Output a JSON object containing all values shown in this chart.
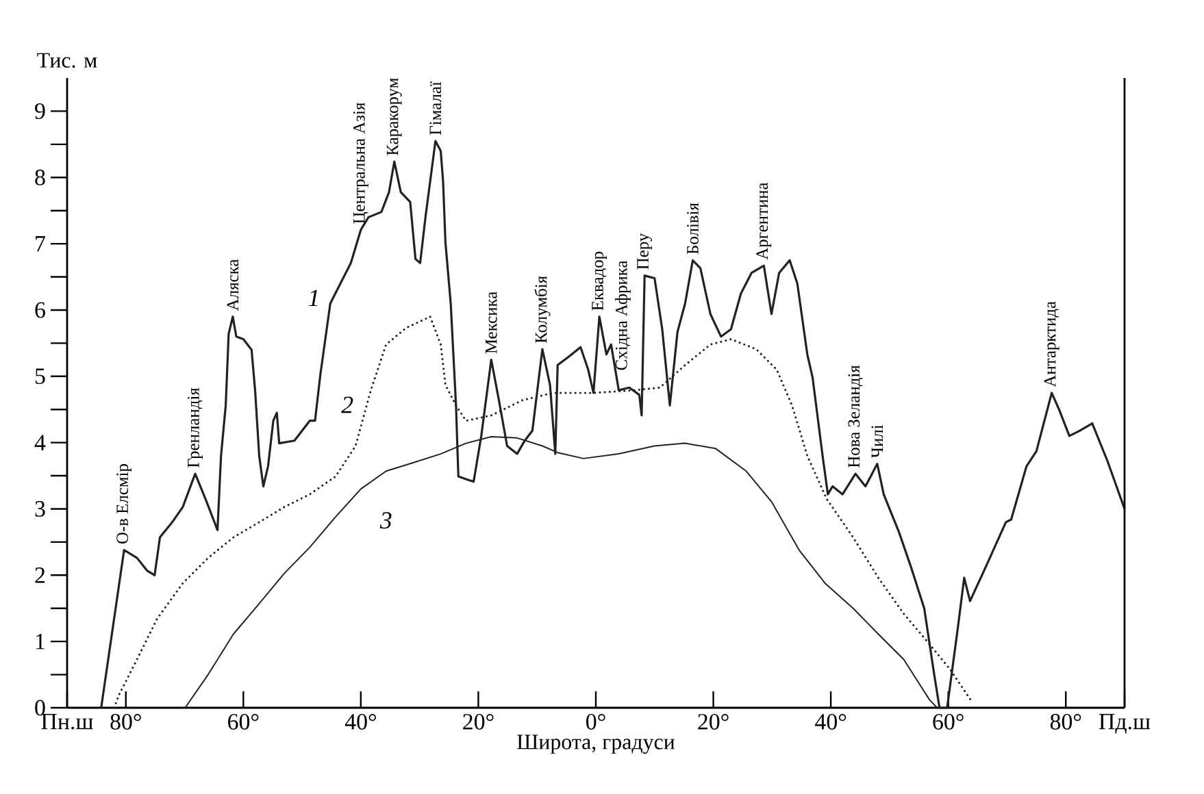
{
  "chart_data": {
    "type": "line",
    "xlabel": "Широта, градуси",
    "ylabel": "Тис. м",
    "xlim": [
      90,
      -90
    ],
    "ylim": [
      0,
      9.5
    ],
    "xticks": [
      {
        "value": 90,
        "label": "Пн.ш"
      },
      {
        "value": 80,
        "label": "80°"
      },
      {
        "value": 60,
        "label": "60°"
      },
      {
        "value": 40,
        "label": "40°"
      },
      {
        "value": 20,
        "label": "20°"
      },
      {
        "value": 0,
        "label": "0°"
      },
      {
        "value": -20,
        "label": "20°"
      },
      {
        "value": -40,
        "label": "40°"
      },
      {
        "value": -60,
        "label": "60°"
      },
      {
        "value": -80,
        "label": "80°"
      },
      {
        "value": -90,
        "label": "Пд.ш"
      }
    ],
    "yticks": [
      0,
      {
        "value": 0.5,
        "label": null
      },
      1,
      {
        "value": 1.5,
        "label": null
      },
      2,
      {
        "value": 2.5,
        "label": null
      },
      3,
      {
        "value": 3.5,
        "label": null
      },
      4,
      {
        "value": 4.5,
        "label": null
      },
      5,
      {
        "value": 5.5,
        "label": null
      },
      6,
      {
        "value": 6.5,
        "label": null
      },
      7,
      {
        "value": 7.5,
        "label": null
      },
      8,
      {
        "value": 8.5,
        "label": null
      },
      9
    ],
    "grid": false,
    "legend": false,
    "marker": "none",
    "series": [
      {
        "name": "1",
        "color": "#222222",
        "line_style": "solid",
        "x": [
          84.2,
          80.3,
          78.1,
          76.4,
          75.1,
          74.2,
          72.1,
          70.3,
          68.2,
          66.4,
          64.4,
          63.8,
          63.0,
          62.5,
          61.8,
          61.2,
          60.0,
          58.6,
          58.0,
          57.3,
          56.6,
          55.8,
          54.9,
          54.3,
          53.9,
          51.3,
          48.7,
          47.8,
          46.9,
          45.2,
          41.7,
          40.0,
          38.7,
          36.5,
          35.2,
          34.3,
          33.2,
          31.6,
          30.7,
          29.9,
          29.0,
          28.2,
          27.3,
          26.4,
          26.0,
          25.6,
          24.7,
          23.8,
          23.4,
          22.1,
          20.8,
          19.5,
          17.8,
          16.5,
          15.1,
          13.4,
          12.1,
          10.8,
          9.1,
          7.8,
          6.9,
          6.5,
          4.7,
          2.6,
          1.3,
          0.4,
          -0.6,
          -1.8,
          -2.6,
          -3.9,
          -5.7,
          -7.4,
          -7.8,
          -8.3,
          -10.0,
          -11.3,
          -12.6,
          -13.9,
          -15.2,
          -16.5,
          -17.8,
          -19.5,
          -21.3,
          -23.0,
          -24.7,
          -26.5,
          -28.6,
          -29.9,
          -31.2,
          -33.0,
          -34.3,
          -36.0,
          -36.9,
          -38.6,
          -39.5,
          -40.3,
          -42.0,
          -44.2,
          -45.9,
          -47.9,
          -49.0,
          -51.6,
          -53.7,
          -55.9,
          -57.6,
          -58.5,
          -59.8,
          -61.6,
          -62.7,
          -63.7,
          -66.3,
          -69.8,
          -70.7,
          -73.3,
          -75.0,
          -77.6,
          -78.9,
          -80.6,
          -82.4,
          -84.5,
          -87.1,
          -90.0
        ],
        "values": [
          0,
          2.38,
          2.26,
          2.07,
          2.0,
          2.57,
          2.8,
          3.03,
          3.53,
          3.14,
          2.68,
          3.8,
          4.56,
          5.64,
          5.9,
          5.6,
          5.56,
          5.4,
          4.79,
          3.8,
          3.34,
          3.64,
          4.33,
          4.45,
          3.99,
          4.03,
          4.33,
          4.33,
          5.02,
          6.1,
          6.71,
          7.21,
          7.4,
          7.48,
          7.78,
          8.24,
          7.78,
          7.63,
          6.77,
          6.71,
          7.4,
          7.94,
          8.55,
          8.4,
          7.94,
          7.02,
          6.1,
          4.56,
          3.49,
          3.45,
          3.41,
          4.1,
          5.25,
          4.64,
          3.95,
          3.83,
          4.03,
          4.18,
          5.41,
          4.87,
          3.83,
          5.17,
          5.29,
          5.44,
          5.1,
          4.75,
          5.9,
          5.33,
          5.48,
          4.79,
          4.83,
          4.72,
          4.41,
          6.52,
          6.48,
          5.71,
          4.56,
          5.67,
          6.1,
          6.75,
          6.63,
          5.94,
          5.6,
          5.71,
          6.25,
          6.56,
          6.67,
          5.94,
          6.56,
          6.75,
          6.4,
          5.33,
          4.98,
          3.8,
          3.22,
          3.34,
          3.22,
          3.53,
          3.34,
          3.68,
          3.22,
          2.65,
          2.11,
          1.5,
          0.5,
          0,
          0,
          1.19,
          1.96,
          1.61,
          2.11,
          2.8,
          2.84,
          3.64,
          3.87,
          4.75,
          4.49,
          4.1,
          4.18,
          4.29,
          3.72,
          3.0
        ]
      },
      {
        "name": "2",
        "color": "#222222",
        "line_style": "dotted",
        "x": [
          82.0,
          81.2,
          78.1,
          74.7,
          70.3,
          66.0,
          61.7,
          57.3,
          53.0,
          48.7,
          44.3,
          40.9,
          38.3,
          35.7,
          32.3,
          28.2,
          26.4,
          25.6,
          23.8,
          22.1,
          17.8,
          12.5,
          7.3,
          0.4,
          -6.5,
          -10.9,
          -15.2,
          -19.5,
          -23.0,
          -27.3,
          -30.8,
          -33.4,
          -36.0,
          -39.3,
          -43.8,
          -48.1,
          -52.4,
          -56.8,
          -60.3,
          -64.1
        ],
        "values": [
          0,
          0.19,
          0.73,
          1.34,
          1.88,
          2.26,
          2.57,
          2.8,
          3.03,
          3.22,
          3.49,
          3.95,
          4.79,
          5.48,
          5.73,
          5.9,
          5.48,
          4.87,
          4.56,
          4.33,
          4.41,
          4.64,
          4.75,
          4.75,
          4.79,
          4.83,
          5.17,
          5.48,
          5.56,
          5.41,
          5.1,
          4.56,
          3.8,
          3.15,
          2.57,
          1.96,
          1.42,
          0.96,
          0.58,
          0.08
        ]
      },
      {
        "name": "3",
        "color": "#222222",
        "line_style": "solid",
        "x": [
          69.9,
          66.0,
          61.7,
          57.3,
          53.0,
          48.7,
          44.3,
          40.0,
          35.7,
          31.0,
          26.4,
          22.1,
          17.8,
          13.4,
          9.1,
          6.5,
          2.1,
          -3.9,
          -10.0,
          -15.2,
          -20.4,
          -25.6,
          -29.9,
          -34.6,
          -39.0,
          -43.8,
          -48.1,
          -52.4,
          -56.8,
          -58.1
        ],
        "values": [
          0,
          0.5,
          1.11,
          1.57,
          2.03,
          2.42,
          2.88,
          3.3,
          3.57,
          3.7,
          3.83,
          3.99,
          4.09,
          4.07,
          3.95,
          3.85,
          3.76,
          3.83,
          3.95,
          3.99,
          3.91,
          3.57,
          3.11,
          2.38,
          1.88,
          1.5,
          1.11,
          0.73,
          0.12,
          0
        ]
      }
    ],
    "annotations": [
      {
        "text": "О-в Елсмір",
        "x": 80.3,
        "y": 2.38
      },
      {
        "text": "Гренландія",
        "x": 68.2,
        "y": 3.53
      },
      {
        "text": "Аляска",
        "x": 61.8,
        "y": 5.9
      },
      {
        "text": "Центральна Азія",
        "x": 40.0,
        "y": 7.21
      },
      {
        "text": "Каракорум",
        "x": 34.3,
        "y": 8.24
      },
      {
        "text": "Гімалаї",
        "x": 27.3,
        "y": 8.55
      },
      {
        "text": "Мексика",
        "x": 17.8,
        "y": 5.25
      },
      {
        "text": "Колумбія",
        "x": 9.1,
        "y": 5.41
      },
      {
        "text": "Еквадор",
        "x": -0.6,
        "y": 5.9
      },
      {
        "text": "Східна Африка",
        "x": -4.6,
        "y": 5.0
      },
      {
        "text": "Перу",
        "x": -8.3,
        "y": 6.52
      },
      {
        "text": "Болівія",
        "x": -16.5,
        "y": 6.75
      },
      {
        "text": "Аргентина",
        "x": -28.6,
        "y": 6.67
      },
      {
        "text": "Нова Зеландія",
        "x": -44.2,
        "y": 3.53
      },
      {
        "text": "Чилі",
        "x": -47.9,
        "y": 3.68
      },
      {
        "text": "Антарктида",
        "x": -77.6,
        "y": 4.75
      }
    ]
  }
}
